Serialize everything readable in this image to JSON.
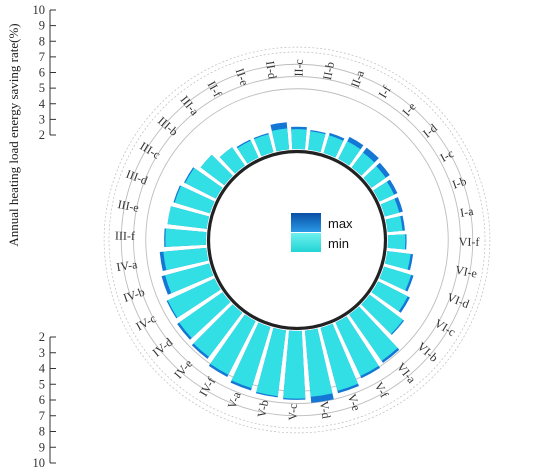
{
  "chart_data": {
    "type": "radial_bar",
    "ylabel": "Annual heating load energy saving rate(%)",
    "ylim": [
      2,
      10
    ],
    "ticks": [
      "2",
      "3",
      "4",
      "5",
      "6",
      "7",
      "8",
      "9",
      "10"
    ],
    "categories": [
      "I-a",
      "I-b",
      "I-c",
      "I-d",
      "I-e",
      "I-f",
      "II-a",
      "II-b",
      "II-c",
      "II-d",
      "II-e",
      "II-f",
      "III-a",
      "III-b",
      "III-c",
      "III-d",
      "III-e",
      "III-f",
      "IV-a",
      "IV-b",
      "IV-c",
      "IV-d",
      "IV-e",
      "IV-f",
      "V-a",
      "V-b",
      "V-c",
      "V-d",
      "V-e",
      "V-f",
      "VI-a",
      "VI-b",
      "VI-c",
      "VI-d",
      "VI-e",
      "VI-f"
    ],
    "series": [
      {
        "name": "min",
        "values": [
          3.3,
          3.3,
          3.4,
          3.5,
          3.6,
          3.7,
          3.6,
          3.6,
          3.7,
          3.8,
          3.6,
          3.6,
          3.9,
          4.5,
          4.9,
          5.1,
          5.3,
          5.4,
          5.6,
          5.8,
          6.3,
          6.4,
          6.6,
          7.0,
          7.3,
          7.5,
          7.6,
          7.5,
          7.4,
          6.9,
          6.7,
          5.5,
          4.8,
          4.4,
          4.0,
          3.5
        ]
      },
      {
        "name": "max",
        "values": [
          3.5,
          3.6,
          3.7,
          3.9,
          4.1,
          4.1,
          3.8,
          3.7,
          3.9,
          4.3,
          3.7,
          3.7,
          3.9,
          4.5,
          5.0,
          5.2,
          5.3,
          5.5,
          5.9,
          6.1,
          6.4,
          6.6,
          6.8,
          7.2,
          7.5,
          7.6,
          7.7,
          8.0,
          7.6,
          7.1,
          6.9,
          5.6,
          5.0,
          4.6,
          4.2,
          3.6
        ]
      }
    ],
    "legend": {
      "position": "center"
    },
    "colors": {
      "min": "#33e5e5",
      "max": "#1477d6",
      "grid": "#bdbdbd",
      "axis": "#333333"
    }
  }
}
